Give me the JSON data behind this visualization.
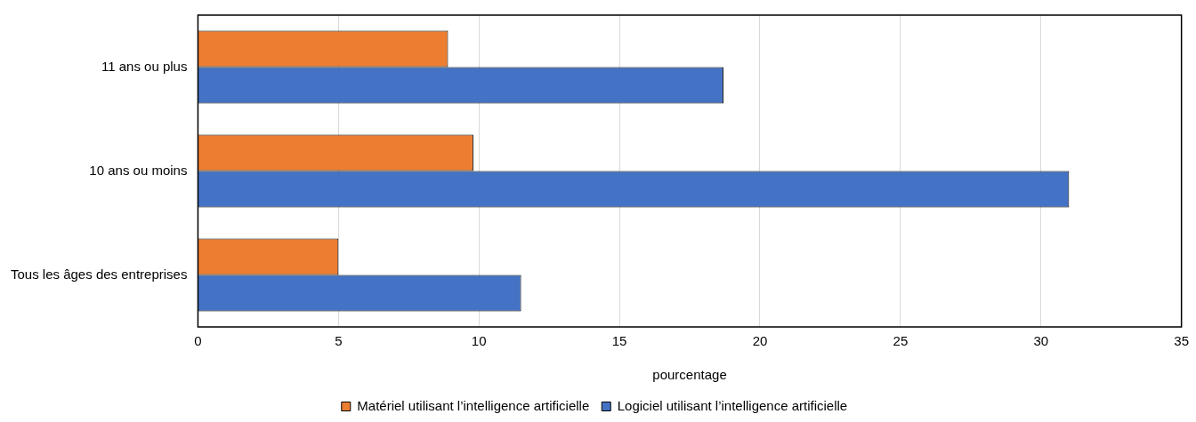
{
  "chart_data": {
    "type": "bar",
    "orientation": "horizontal",
    "xlabel": "pourcentage",
    "categories": [
      "11 ans ou plus",
      "10 ans ou moins",
      "Tous les âges des entreprises"
    ],
    "series": [
      {
        "name": "Matériel utilisant l’intelligence artificielle",
        "color": "#ed7d31",
        "values": [
          8.9,
          9.8,
          5.0
        ]
      },
      {
        "name": "Logiciel utilisant l’intelligence artificielle",
        "color": "#4472c4",
        "values": [
          18.7,
          31.0,
          11.5
        ]
      }
    ],
    "xlim": [
      0,
      35
    ],
    "xticks": [
      0,
      5,
      10,
      15,
      20,
      25,
      30,
      35
    ],
    "grid": "x",
    "legend": "bottom"
  }
}
